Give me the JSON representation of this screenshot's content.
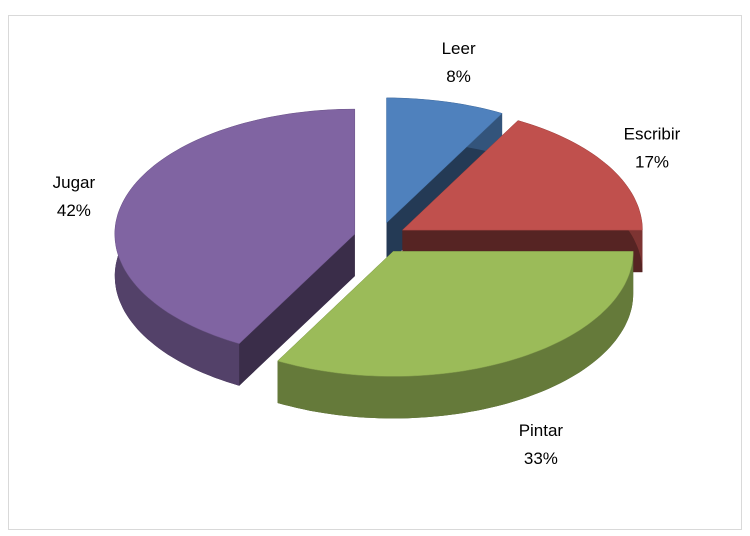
{
  "chart_data": {
    "type": "pie",
    "categories": [
      "Leer",
      "Escribir",
      "Pintar",
      "Jugar"
    ],
    "values": [
      8,
      17,
      33,
      42
    ],
    "value_labels": [
      "8%",
      "17%",
      "33%",
      "42%"
    ],
    "colors": [
      "#4f81bd",
      "#c0504d",
      "#9bbb59",
      "#8064a2"
    ],
    "exploded": true,
    "three_d": true
  }
}
